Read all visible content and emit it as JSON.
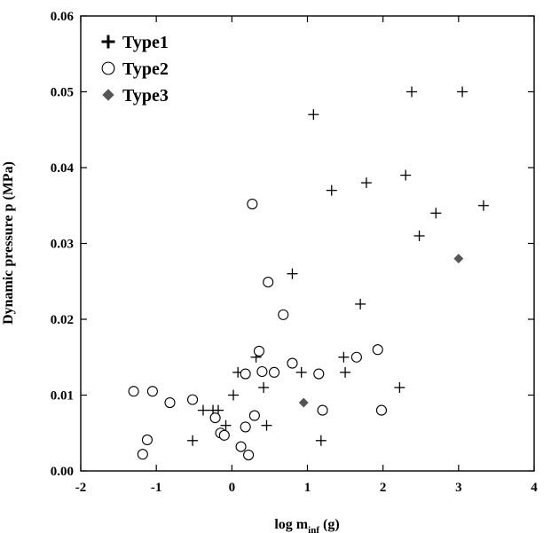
{
  "chart_data": {
    "type": "scatter",
    "xlabel": "log m",
    "xlabel_sub": "inf",
    "xlabel_unit": " (g)",
    "ylabel": "Dynamic pressure p (MPa)",
    "xlim": [
      -2,
      4
    ],
    "ylim": [
      0,
      0.06
    ],
    "xticks": [
      -2,
      -1,
      0,
      1,
      2,
      3,
      4
    ],
    "yticks": [
      0.0,
      0.01,
      0.02,
      0.03,
      0.04,
      0.05,
      0.06
    ],
    "xtick_labels": [
      "-2",
      "-1",
      "0",
      "1",
      "2",
      "3",
      "4"
    ],
    "ytick_labels": [
      "0.00",
      "0.01",
      "0.02",
      "0.03",
      "0.04",
      "0.05",
      "0.06"
    ],
    "grid": false,
    "legend_position": "top-left",
    "series": [
      {
        "name": "Type1",
        "marker": "plus",
        "color": "#000000",
        "points": [
          [
            -0.52,
            0.004
          ],
          [
            -0.38,
            0.008
          ],
          [
            -0.25,
            0.008
          ],
          [
            -0.18,
            0.008
          ],
          [
            -0.08,
            0.006
          ],
          [
            0.02,
            0.01
          ],
          [
            0.08,
            0.013
          ],
          [
            0.32,
            0.015
          ],
          [
            0.42,
            0.011
          ],
          [
            0.46,
            0.006
          ],
          [
            0.8,
            0.026
          ],
          [
            0.92,
            0.013
          ],
          [
            1.08,
            0.047
          ],
          [
            1.18,
            0.004
          ],
          [
            1.32,
            0.037
          ],
          [
            1.48,
            0.015
          ],
          [
            1.5,
            0.013
          ],
          [
            1.7,
            0.022
          ],
          [
            1.78,
            0.038
          ],
          [
            2.22,
            0.011
          ],
          [
            2.3,
            0.039
          ],
          [
            2.38,
            0.05
          ],
          [
            2.48,
            0.031
          ],
          [
            2.7,
            0.034
          ],
          [
            3.05,
            0.05
          ],
          [
            3.33,
            0.035
          ]
        ]
      },
      {
        "name": "Type2",
        "marker": "circle",
        "color": "#000000",
        "points": [
          [
            -1.3,
            0.0105
          ],
          [
            -1.18,
            0.0022
          ],
          [
            -1.12,
            0.0041
          ],
          [
            -1.05,
            0.0105
          ],
          [
            -0.82,
            0.009
          ],
          [
            -0.52,
            0.0094
          ],
          [
            -0.22,
            0.007
          ],
          [
            -0.15,
            0.005
          ],
          [
            -0.1,
            0.0047
          ],
          [
            0.12,
            0.0032
          ],
          [
            0.18,
            0.0058
          ],
          [
            0.18,
            0.0128
          ],
          [
            0.22,
            0.0021
          ],
          [
            0.27,
            0.0352
          ],
          [
            0.3,
            0.0073
          ],
          [
            0.36,
            0.0158
          ],
          [
            0.4,
            0.0131
          ],
          [
            0.48,
            0.0249
          ],
          [
            0.56,
            0.013
          ],
          [
            0.68,
            0.0206
          ],
          [
            0.8,
            0.0142
          ],
          [
            1.15,
            0.0128
          ],
          [
            1.2,
            0.008
          ],
          [
            1.65,
            0.015
          ],
          [
            1.93,
            0.016
          ],
          [
            1.98,
            0.008
          ]
        ]
      },
      {
        "name": "Type3",
        "marker": "diamond",
        "color": "#555555",
        "points": [
          [
            0.95,
            0.009
          ],
          [
            3.0,
            0.028
          ]
        ]
      }
    ]
  }
}
